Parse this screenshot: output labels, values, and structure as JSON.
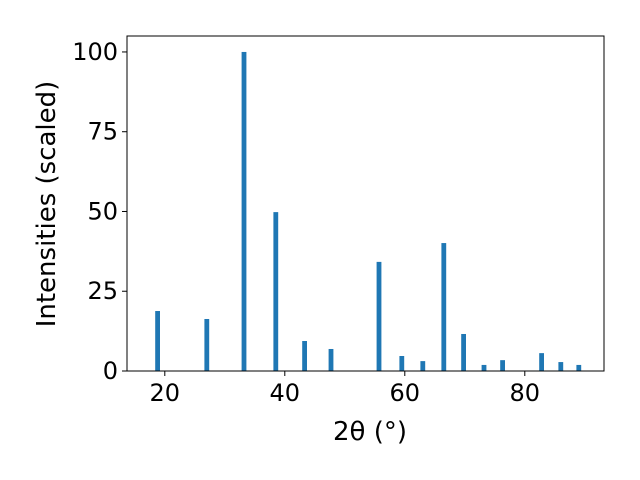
{
  "chart_data": {
    "type": "bar",
    "xlabel": "2θ (°)",
    "ylabel": "Intensities (scaled)",
    "x": [
      18.8,
      27.0,
      33.2,
      38.5,
      43.3,
      47.7,
      55.7,
      59.5,
      63.0,
      66.5,
      69.8,
      73.2,
      76.3,
      82.8,
      86.0,
      89.0
    ],
    "values": [
      18.8,
      16.3,
      100,
      49.8,
      9.4,
      6.9,
      34.2,
      4.7,
      3.1,
      40.1,
      11.6,
      1.9,
      3.4,
      5.6,
      2.8,
      1.9
    ],
    "color": "#1f77b4",
    "xlim": [
      13.7,
      93.2
    ],
    "xticks": [
      20,
      40,
      60,
      80
    ],
    "ylim": [
      0,
      105
    ],
    "yticks": [
      0,
      25,
      50,
      75,
      100
    ],
    "grid": false
  }
}
